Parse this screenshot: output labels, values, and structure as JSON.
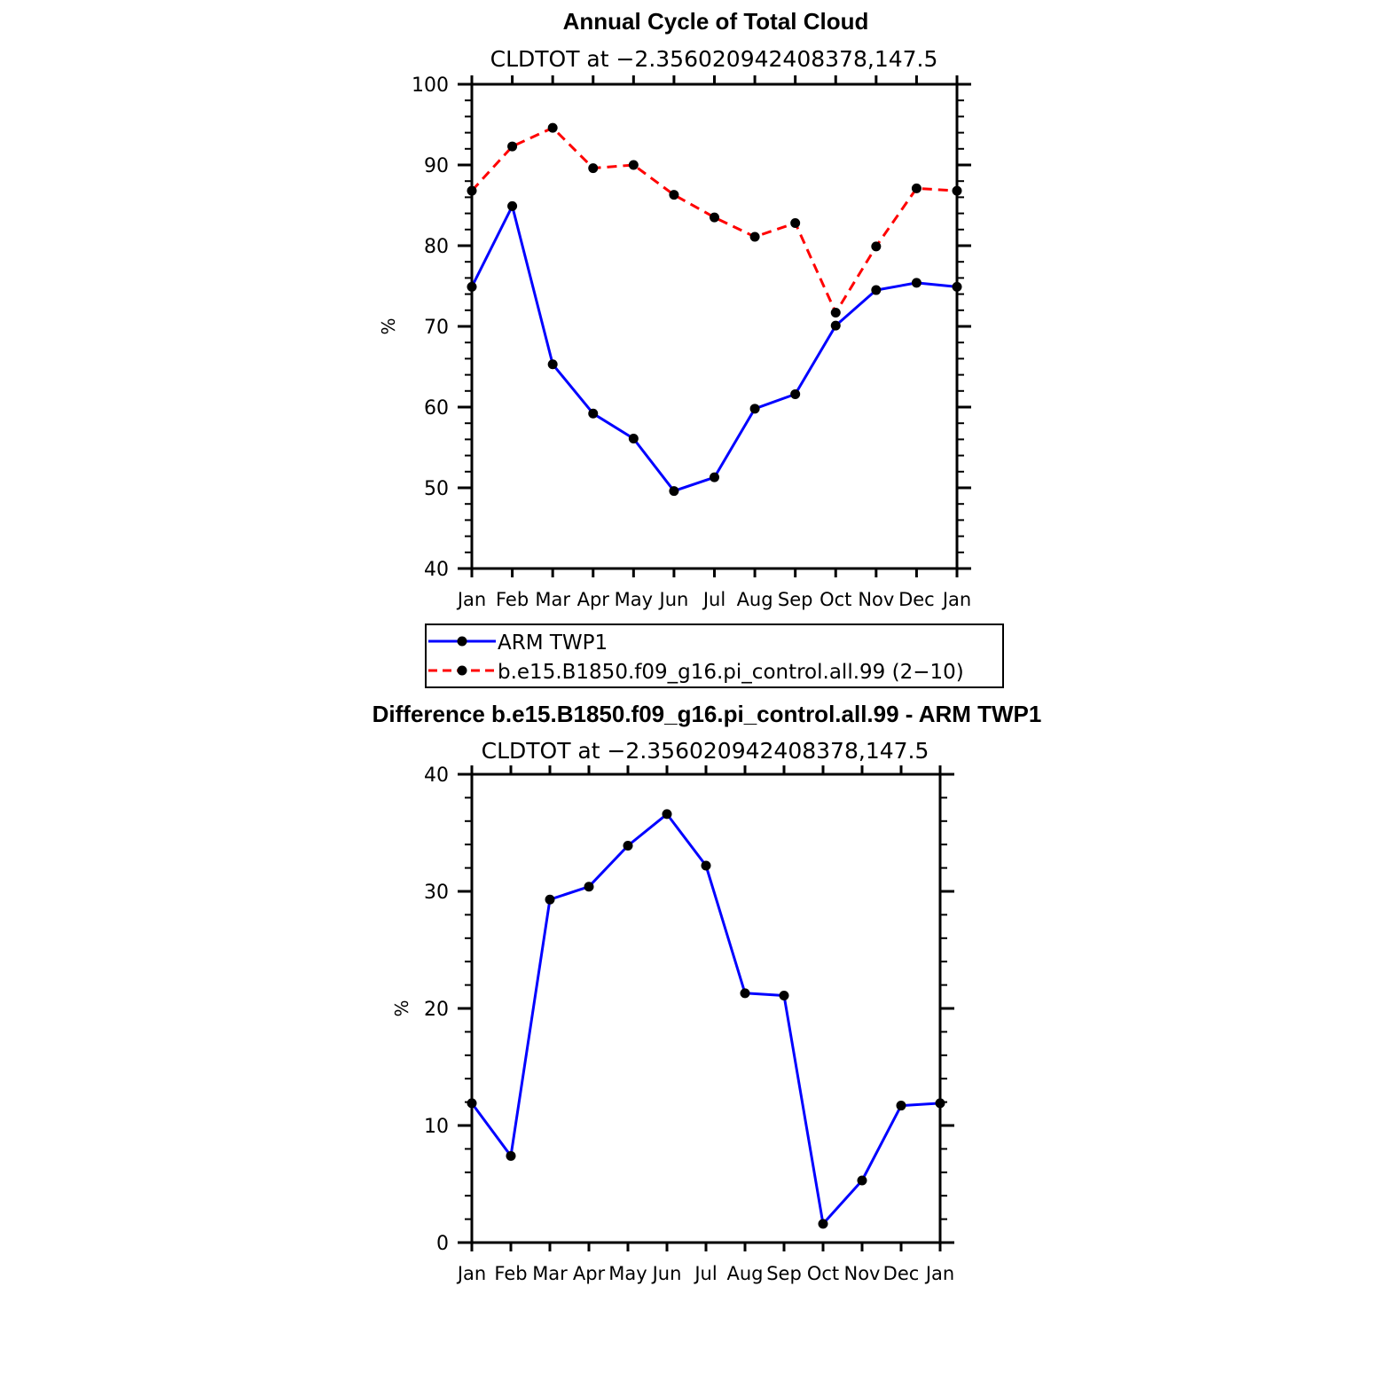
{
  "colors": {
    "obs": "#0000ff",
    "model": "#ff0000",
    "marker": "#000000",
    "axis": "#000000"
  },
  "chart_data": [
    {
      "type": "line",
      "title": "Annual Cycle of Total Cloud",
      "subtitle": "CLDTOT at −2.356020942408378,147.5",
      "ylabel": "%",
      "ylim": [
        40,
        100
      ],
      "yticks": [
        40,
        50,
        60,
        70,
        80,
        90,
        100
      ],
      "categories": [
        "Jan",
        "Feb",
        "Mar",
        "Apr",
        "May",
        "Jun",
        "Jul",
        "Aug",
        "Sep",
        "Oct",
        "Nov",
        "Dec",
        "Jan"
      ],
      "series": [
        {
          "name": "ARM TWP1",
          "style": "solid",
          "color": "#0000ff",
          "values": [
            74.9,
            84.9,
            65.3,
            59.2,
            56.1,
            49.6,
            51.3,
            59.8,
            61.6,
            70.1,
            74.5,
            75.4,
            74.9
          ]
        },
        {
          "name": "b.e15.B1850.f09_g16.pi_control.all.99 (2−10)",
          "style": "dashed",
          "color": "#ff0000",
          "values": [
            86.8,
            92.3,
            94.6,
            89.6,
            90.0,
            86.3,
            83.5,
            81.1,
            82.8,
            71.7,
            79.9,
            87.1,
            86.8
          ]
        }
      ],
      "legend": [
        "ARM TWP1",
        "b.e15.B1850.f09_g16.pi_control.all.99 (2−10)"
      ]
    },
    {
      "type": "line",
      "title": "Difference b.e15.B1850.f09_g16.pi_control.all.99 - ARM TWP1",
      "subtitle": "CLDTOT at −2.356020942408378,147.5",
      "ylabel": "%",
      "ylim": [
        0,
        40
      ],
      "yticks": [
        0,
        10,
        20,
        30,
        40
      ],
      "categories": [
        "Jan",
        "Feb",
        "Mar",
        "Apr",
        "May",
        "Jun",
        "Jul",
        "Aug",
        "Sep",
        "Oct",
        "Nov",
        "Dec",
        "Jan"
      ],
      "series": [
        {
          "name": "Difference",
          "style": "solid",
          "color": "#0000ff",
          "values": [
            11.9,
            7.4,
            29.3,
            30.4,
            33.9,
            36.6,
            32.2,
            21.3,
            21.1,
            1.6,
            5.3,
            11.7,
            11.9
          ]
        }
      ]
    }
  ]
}
